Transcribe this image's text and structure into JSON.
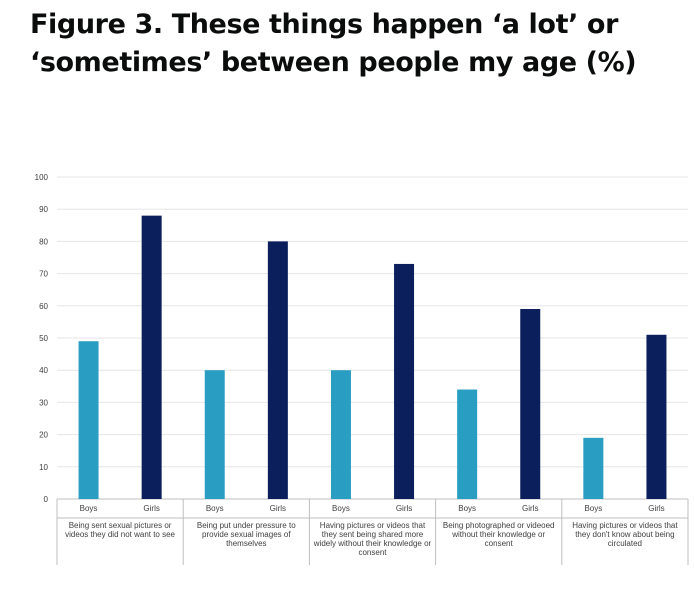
{
  "title": "Figure 3. These things happen ‘a lot’ or ‘sometimes’ between people my age (%)",
  "colors": {
    "boys": "#2a9dc2",
    "girls": "#0b1f5c",
    "grid": "#e6e6e6",
    "axis": "#bfbfbf"
  },
  "chart_data": {
    "type": "bar",
    "title": "Figure 3. These things happen ‘a lot’ or ‘sometimes’ between people my age (%)",
    "ylim": [
      0,
      100
    ],
    "yticks": [
      0,
      10,
      20,
      30,
      40,
      50,
      60,
      70,
      80,
      90,
      100
    ],
    "grid": true,
    "groups": [
      {
        "category": "Being sent sexual pictures or videos they did not want to see",
        "category_lines": [
          "Being sent sexual pictures or",
          "videos they did not want to see"
        ],
        "bars": [
          {
            "label": "Boys",
            "value": 49
          },
          {
            "label": "Girls",
            "value": 88
          }
        ]
      },
      {
        "category": "Being put under pressure to provide sexual images of themselves",
        "category_lines": [
          "Being put under pressure to",
          "provide sexual images of",
          "themselves"
        ],
        "bars": [
          {
            "label": "Boys",
            "value": 40
          },
          {
            "label": "Girls",
            "value": 80
          }
        ]
      },
      {
        "category": "Having pictures or videos that they sent being shared more widely without their knowledge or consent",
        "category_lines": [
          "Having pictures or videos that",
          "they sent being shared more",
          "widely without their knowledge or",
          "consent"
        ],
        "bars": [
          {
            "label": "Boys",
            "value": 40
          },
          {
            "label": "Girls",
            "value": 73
          }
        ]
      },
      {
        "category": "Being photographed or videoed without their knowledge or consent",
        "category_lines": [
          "Being photographed or videoed",
          "without their knowledge or",
          "consent"
        ],
        "bars": [
          {
            "label": "Boys",
            "value": 34
          },
          {
            "label": "Girls",
            "value": 59
          }
        ]
      },
      {
        "category": "Having pictures or videos that they don't know about being circulated",
        "category_lines": [
          "Having pictures or videos that",
          "they don't know about being",
          "circulated"
        ],
        "bars": [
          {
            "label": "Boys",
            "value": 19
          },
          {
            "label": "Girls",
            "value": 51
          }
        ]
      }
    ]
  }
}
